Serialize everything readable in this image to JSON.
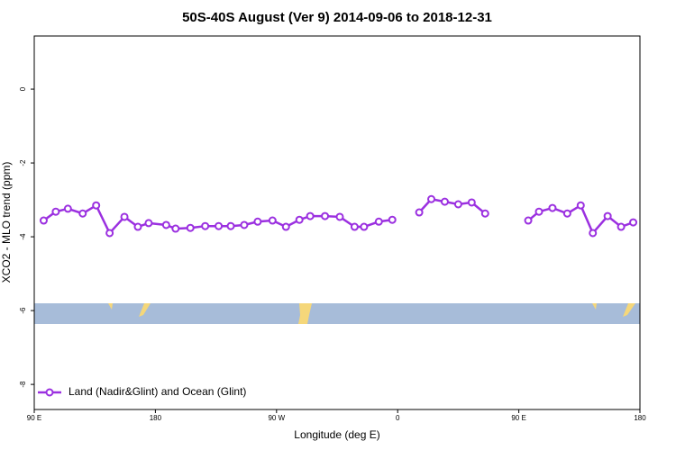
{
  "chart_data": {
    "type": "line",
    "title": "50S-40S August (Ver 9)   2014-09-06 to 2018-12-31",
    "x_label": "Longitude (deg E)",
    "y_label": "XCO2 - MLO trend (ppm)",
    "x": [
      97,
      106,
      115,
      126,
      136,
      146,
      157,
      167,
      175,
      188,
      195,
      206,
      217,
      227,
      236,
      246,
      256,
      267,
      277,
      287,
      295,
      306,
      317,
      328,
      335,
      346,
      356,
      365,
      376,
      385,
      395,
      405,
      415,
      425,
      445,
      457,
      465,
      475,
      486,
      496,
      505,
      516,
      526,
      535
    ],
    "series": [
      {
        "name": "Land (Nadir&Glint) and Ocean (Glint)",
        "color": "#9b30e0",
        "values": [
          -3.56,
          -3.32,
          -3.24,
          -3.37,
          -3.15,
          -3.9,
          -3.46,
          -3.73,
          -3.63,
          -3.68,
          -3.78,
          -3.76,
          -3.71,
          -3.71,
          -3.71,
          -3.68,
          -3.59,
          -3.56,
          -3.73,
          -3.54,
          -3.44,
          -3.44,
          -3.46,
          -3.73,
          -3.73,
          -3.59,
          -3.54,
          null,
          -3.34,
          -2.98,
          -3.05,
          -3.12,
          -3.07,
          -3.37,
          null,
          -3.56,
          -3.32,
          -3.22,
          -3.37,
          -3.15,
          -3.9,
          -3.44,
          -3.73,
          -3.61
        ]
      }
    ],
    "xlim": [
      90,
      540
    ],
    "xticks": [
      {
        "value": 90,
        "label": "90 E"
      },
      180,
      {
        "value": 270,
        "label": "90 W"
      },
      {
        "value": 360,
        "label": "0"
      },
      {
        "value": 450,
        "label": "90 E"
      },
      {
        "value": 540,
        "label": "180"
      }
    ],
    "ylim": [
      -8.68,
      1.44
    ],
    "yticks": [
      0,
      -2,
      -4,
      -6,
      -8
    ],
    "grid": false,
    "legend": "bottom-left"
  }
}
